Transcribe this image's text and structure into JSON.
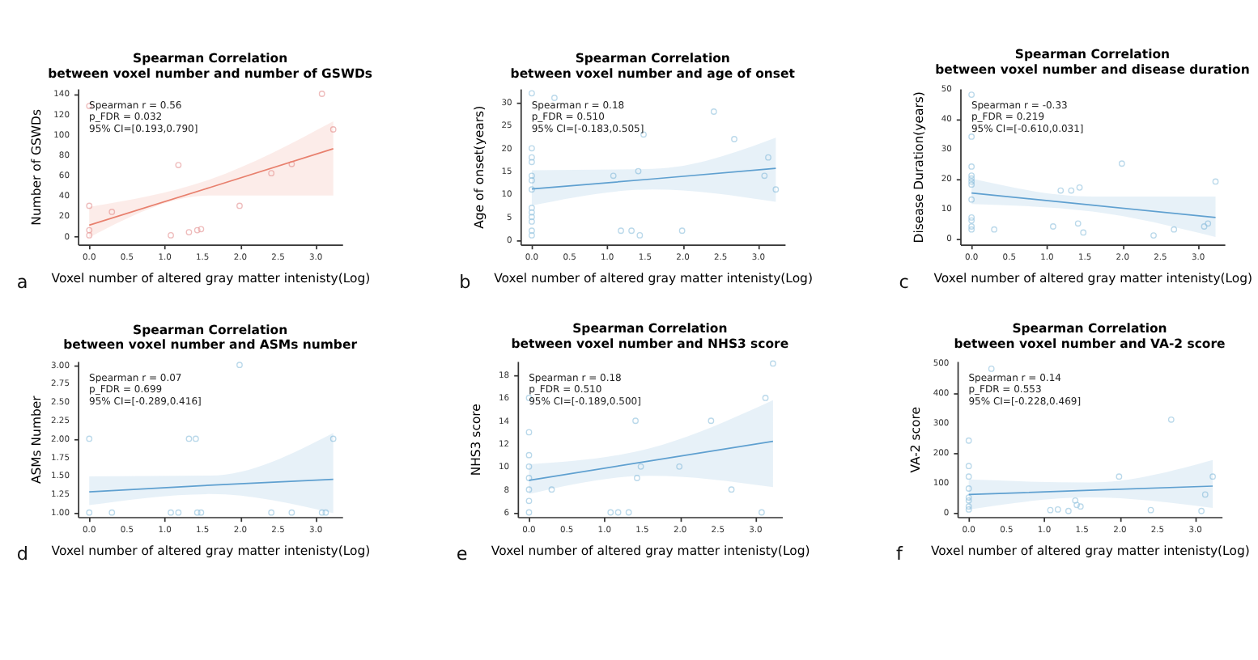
{
  "chart_data": [
    {
      "type": "scatter",
      "title": "Spearman Correlation\nbetween voxel number and number of GSWDs",
      "xlabel": "Voxel number of altered gray matter intenisty(Log)",
      "ylabel": "Number of GSWDs",
      "marker": "circle",
      "grid": false,
      "annotations": [
        "Spearman r = 0.56",
        "p_FDR = 0.032",
        "95% CI=[0.193,0.790]",
        "a"
      ],
      "xlim": [
        -0.15,
        3.35
      ],
      "xticks": [
        {
          "value": 0,
          "label": "0.0"
        },
        {
          "value": 0.5,
          "label": "0.5"
        },
        {
          "value": 1,
          "label": "1.0"
        },
        {
          "value": 1.5,
          "label": "1.5"
        },
        {
          "value": 2,
          "label": "2.0"
        },
        {
          "value": 2.5,
          "label": "2.5"
        },
        {
          "value": 3,
          "label": "3.0"
        }
      ],
      "ylim": [
        -8,
        145
      ],
      "yticks": [
        0,
        20,
        40,
        60,
        80,
        100,
        120,
        140
      ],
      "series": [
        {
          "type": "scatter",
          "color": "#e8a0a0",
          "x": [
            0,
            0,
            0,
            0,
            0.3,
            1.08,
            1.18,
            1.32,
            1.43,
            1.48,
            1.99,
            2.41,
            2.68,
            3.08,
            3.23
          ],
          "values": [
            1,
            6,
            30,
            128,
            24,
            1,
            70,
            4,
            6,
            7,
            30,
            62,
            71,
            140,
            105
          ]
        },
        {
          "type": "line",
          "marker": "none",
          "line_style": "solid",
          "color": "#e8806e",
          "x": [
            0,
            1.6,
            3.23
          ],
          "values": [
            11,
            48,
            86
          ],
          "lower": [
            -1,
            40,
            40
          ],
          "upper": [
            29,
            56,
            113
          ]
        }
      ]
    },
    {
      "type": "scatter",
      "title": "Spearman Correlation\nbetween voxel number and age of onset",
      "xlabel": "Voxel number of altered gray matter intenisty(Log)",
      "ylabel": "Age of onset(years)",
      "marker": "circle",
      "grid": false,
      "annotations": [
        "Spearman r = 0.18",
        "p_FDR = 0.510",
        "95% CI=[-0.183,0.505]",
        "b"
      ],
      "xlim": [
        -0.15,
        3.35
      ],
      "xticks": [
        {
          "value": 0,
          "label": "0.0"
        },
        {
          "value": 0.5,
          "label": "0.5"
        },
        {
          "value": 1,
          "label": "1.0"
        },
        {
          "value": 1.5,
          "label": "1.5"
        },
        {
          "value": 2,
          "label": "2.0"
        },
        {
          "value": 2.5,
          "label": "2.5"
        },
        {
          "value": 3,
          "label": "3.0"
        }
      ],
      "ylim": [
        -1,
        33
      ],
      "yticks": [
        0,
        5,
        10,
        15,
        20,
        25,
        30
      ],
      "series": [
        {
          "type": "scatter",
          "color": "#9ec9e2",
          "x": [
            0,
            0,
            0,
            0,
            0,
            0,
            0,
            0,
            0,
            0,
            0,
            0,
            0,
            0.3,
            1.08,
            1.18,
            1.32,
            1.41,
            1.43,
            1.48,
            1.99,
            2.41,
            2.68,
            3.08,
            3.13,
            3.23
          ],
          "values": [
            32,
            20,
            18,
            17,
            14,
            13,
            11,
            7,
            6,
            5,
            4,
            2,
            1,
            31,
            14,
            2,
            2,
            15,
            1,
            23,
            2,
            28,
            22,
            14,
            18,
            11
          ]
        },
        {
          "type": "line",
          "marker": "none",
          "line_style": "solid",
          "color": "#5fa0d0",
          "x": [
            0,
            1.6,
            3.23
          ],
          "values": [
            11.1,
            13.3,
            15.6
          ],
          "lower": [
            7.5,
            11,
            8.3
          ],
          "upper": [
            15.2,
            15.5,
            22.3
          ]
        }
      ]
    },
    {
      "type": "scatter",
      "title": "Spearman Correlation\nbetween voxel number and disease duration",
      "xlabel": "Voxel number of altered gray matter intenisty(Log)",
      "ylabel": "Disease Duration(years)",
      "marker": "circle",
      "grid": false,
      "annotations": [
        "Spearman r = -0.33",
        "p_FDR = 0.219",
        "95% CI=[-0.610,0.031]",
        "c"
      ],
      "xlim": [
        -0.15,
        3.35
      ],
      "xticks": [
        {
          "value": 0,
          "label": "0.0"
        },
        {
          "value": 0.5,
          "label": "0.5"
        },
        {
          "value": 1,
          "label": "1.0"
        },
        {
          "value": 1.5,
          "label": "1.5"
        },
        {
          "value": 2,
          "label": "2.0"
        },
        {
          "value": 2.5,
          "label": "2.5"
        },
        {
          "value": 3,
          "label": "3.0"
        }
      ],
      "ylim": [
        -2,
        50
      ],
      "yticks": [
        0,
        10,
        20,
        30,
        40,
        50
      ],
      "series": [
        {
          "type": "scatter",
          "color": "#9ec9e2",
          "x": [
            0,
            0,
            0,
            0,
            0,
            0,
            0,
            0,
            0,
            0,
            0,
            0,
            0.3,
            1.08,
            1.18,
            1.32,
            1.41,
            1.43,
            1.48,
            1.99,
            2.41,
            2.68,
            3.08,
            3.13,
            3.23
          ],
          "values": [
            48,
            34,
            24,
            21,
            20,
            19,
            18,
            13,
            7,
            6,
            4,
            3,
            3,
            4,
            16,
            16,
            5,
            17,
            2,
            25,
            1,
            3,
            4,
            5,
            19
          ]
        },
        {
          "type": "line",
          "marker": "none",
          "line_style": "solid",
          "color": "#5fa0d0",
          "x": [
            0,
            1.6,
            3.23
          ],
          "values": [
            15.2,
            11.1,
            7
          ],
          "lower": [
            11.5,
            9,
            0.5
          ],
          "upper": [
            20,
            14,
            14
          ]
        }
      ]
    },
    {
      "type": "scatter",
      "title": "Spearman Correlation\nbetween voxel number and ASMs number",
      "xlabel": "Voxel number of altered gray matter intenisty(Log)",
      "ylabel": "ASMs Number",
      "marker": "circle",
      "grid": false,
      "annotations": [
        "Spearman r = 0.07",
        "p_FDR = 0.699",
        "95% CI=[-0.289,0.416]",
        "d"
      ],
      "xlim": [
        -0.15,
        3.35
      ],
      "xticks": [
        {
          "value": 0,
          "label": "0.0"
        },
        {
          "value": 0.5,
          "label": "0.5"
        },
        {
          "value": 1,
          "label": "1.0"
        },
        {
          "value": 1.5,
          "label": "1.5"
        },
        {
          "value": 2,
          "label": "2.0"
        },
        {
          "value": 2.5,
          "label": "2.5"
        },
        {
          "value": 3,
          "label": "3.0"
        }
      ],
      "ylim": [
        0.94,
        3.05
      ],
      "yticks": [
        {
          "value": 1,
          "label": "1.00"
        },
        1.25,
        {
          "value": 1.5,
          "label": "1.50"
        },
        1.75,
        {
          "value": 2,
          "label": "2.00"
        },
        2.25,
        {
          "value": 2.5,
          "label": "2.50"
        },
        2.75,
        {
          "value": 3,
          "label": "3.00"
        }
      ],
      "series": [
        {
          "type": "scatter",
          "color": "#9ec9e2",
          "x": [
            0,
            0,
            0.3,
            1.08,
            1.18,
            1.32,
            1.41,
            1.43,
            1.48,
            1.99,
            2.41,
            2.68,
            3.08,
            3.13,
            3.23
          ],
          "values": [
            1,
            2,
            1,
            1,
            1,
            2,
            2,
            1,
            1,
            3,
            1,
            1,
            1,
            1,
            2
          ]
        },
        {
          "type": "line",
          "marker": "none",
          "line_style": "solid",
          "color": "#5fa0d0",
          "x": [
            0,
            1.6,
            3.23
          ],
          "values": [
            1.28,
            1.37,
            1.45
          ],
          "lower": [
            1.1,
            1.25,
            0.99
          ],
          "upper": [
            1.49,
            1.5,
            2.08
          ]
        }
      ]
    },
    {
      "type": "scatter",
      "title": "Spearman Correlation\nbetween voxel number and NHS3 score",
      "xlabel": "Voxel number of altered gray matter intenisty(Log)",
      "ylabel": "NHS3 score",
      "marker": "circle",
      "grid": false,
      "annotations": [
        "Spearman r = 0.18",
        "p_FDR = 0.510",
        "95% CI=[-0.189,0.500]",
        "e"
      ],
      "xlim": [
        -0.15,
        3.35
      ],
      "xticks": [
        {
          "value": 0,
          "label": "0.0"
        },
        {
          "value": 0.5,
          "label": "0.5"
        },
        {
          "value": 1,
          "label": "1.0"
        },
        {
          "value": 1.5,
          "label": "1.5"
        },
        {
          "value": 2,
          "label": "2.0"
        },
        {
          "value": 2.5,
          "label": "2.5"
        },
        {
          "value": 3,
          "label": "3.0"
        }
      ],
      "ylim": [
        5.6,
        19.2
      ],
      "yticks": [
        6,
        8,
        10,
        12,
        14,
        16,
        18
      ],
      "series": [
        {
          "type": "scatter",
          "color": "#9ec9e2",
          "x": [
            0,
            0,
            0,
            0,
            0,
            0,
            0,
            0,
            0.3,
            1.08,
            1.18,
            1.32,
            1.41,
            1.43,
            1.48,
            1.99,
            2.41,
            2.68,
            3.08,
            3.13,
            3.23
          ],
          "values": [
            16,
            13,
            11,
            10,
            9,
            8,
            7,
            6,
            8,
            6,
            6,
            6,
            14,
            9,
            10,
            10,
            14,
            8,
            6,
            16,
            19
          ]
        },
        {
          "type": "line",
          "marker": "none",
          "line_style": "solid",
          "color": "#5fa0d0",
          "x": [
            0,
            1.6,
            3.23
          ],
          "values": [
            8.8,
            10.5,
            12.2
          ],
          "lower": [
            7.6,
            9.2,
            8.2
          ],
          "upper": [
            10.2,
            11.6,
            15.8
          ]
        }
      ]
    },
    {
      "type": "scatter",
      "title": "Spearman Correlation\nbetween voxel number and VA-2 score",
      "xlabel": "Voxel number of altered gray matter intenisty(Log)",
      "ylabel": "VA-2 score",
      "marker": "circle",
      "grid": false,
      "annotations": [
        "Spearman r = 0.14",
        "p_FDR = 0.553",
        "95% CI=[-0.228,0.469]",
        "f"
      ],
      "xlim": [
        -0.15,
        3.35
      ],
      "xticks": [
        {
          "value": 0,
          "label": "0.0"
        },
        {
          "value": 0.5,
          "label": "0.5"
        },
        {
          "value": 1,
          "label": "1.0"
        },
        {
          "value": 1.5,
          "label": "1.5"
        },
        {
          "value": 2,
          "label": "2.0"
        },
        {
          "value": 2.5,
          "label": "2.5"
        },
        {
          "value": 3,
          "label": "3.0"
        }
      ],
      "ylim": [
        -15,
        505
      ],
      "yticks": [
        0,
        100,
        200,
        300,
        400,
        500
      ],
      "series": [
        {
          "type": "scatter",
          "color": "#9ec9e2",
          "x": [
            0,
            0,
            0,
            0,
            0,
            0,
            0,
            0,
            0.3,
            1.08,
            1.18,
            1.32,
            1.41,
            1.43,
            1.48,
            1.99,
            2.41,
            2.68,
            3.08,
            3.13,
            3.23
          ],
          "values": [
            240,
            155,
            120,
            80,
            50,
            40,
            20,
            10,
            480,
            8,
            10,
            5,
            40,
            25,
            20,
            120,
            8,
            310,
            5,
            60,
            120
          ]
        },
        {
          "type": "line",
          "marker": "none",
          "line_style": "solid",
          "color": "#5fa0d0",
          "x": [
            0,
            1.6,
            3.23
          ],
          "values": [
            60,
            74,
            88
          ],
          "lower": [
            10,
            50,
            15
          ],
          "upper": [
            110,
            100,
            175
          ]
        }
      ]
    }
  ]
}
